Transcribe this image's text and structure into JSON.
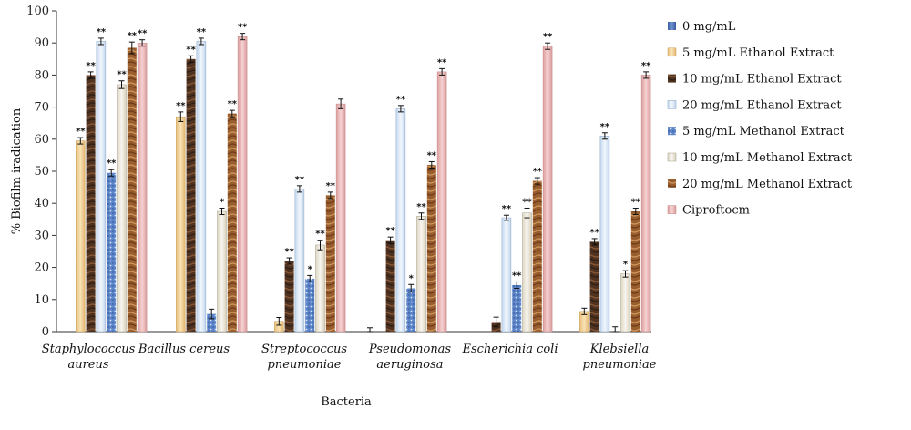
{
  "chart_data": {
    "type": "bar",
    "xlabel": "Bacteria",
    "ylabel": "% Biofilm iradication",
    "ylim": [
      0,
      100
    ],
    "yticks": [
      "0",
      "10",
      "20",
      "30",
      "40",
      "50",
      "60",
      "70",
      "80",
      "90",
      "100"
    ],
    "categories": [
      [
        "Staphylococcus",
        "aureus"
      ],
      [
        "Bacillus cereus"
      ],
      [
        "Streptococcus",
        "pneumoniae"
      ],
      [
        "Pseudomonas",
        "aeruginosa"
      ],
      [
        "Escherichia coli"
      ],
      [
        "Klebsiella",
        "pneumoniae"
      ]
    ],
    "legend_position": "right",
    "series": [
      {
        "name": "0 mg/mL",
        "color": "#4a6fb5",
        "pattern": "solid-blue",
        "values": [
          0,
          0,
          0,
          0,
          0,
          0
        ],
        "errors": [
          0,
          0,
          0,
          1.2,
          0,
          0
        ],
        "sig": [
          "",
          "",
          "",
          "",
          "",
          ""
        ]
      },
      {
        "name": "5 mg/mL Ethanol Extract",
        "color": "#f2d39a",
        "pattern": "peach",
        "values": [
          59.5,
          67,
          3.2,
          0,
          0,
          6.3
        ],
        "errors": [
          1,
          1.5,
          1.2,
          0,
          0,
          1
        ],
        "sig": [
          "**",
          "**",
          "",
          "",
          "",
          ""
        ]
      },
      {
        "name": "10 mg/mL Ethanol Extract",
        "color": "#5c3b26",
        "pattern": "dark-wood",
        "values": [
          80,
          85,
          22,
          28.5,
          3,
          28
        ],
        "errors": [
          1,
          1,
          1,
          1,
          1.5,
          1
        ],
        "sig": [
          "**",
          "**",
          "**",
          "**",
          "",
          "**"
        ]
      },
      {
        "name": "20 mg/mL Ethanol Extract",
        "color": "#dbe8f5",
        "pattern": "light-blue",
        "values": [
          90.5,
          90.5,
          44.5,
          69.5,
          35.5,
          61
        ],
        "errors": [
          1,
          1,
          1,
          1,
          0.8,
          1
        ],
        "sig": [
          "**",
          "**",
          "**",
          "**",
          "**",
          "**"
        ]
      },
      {
        "name": "5 mg/mL Methanol Extract",
        "color": "#5b84c9",
        "pattern": "blue-dots",
        "values": [
          49.5,
          5.5,
          16.5,
          13.5,
          14.5,
          0
        ],
        "errors": [
          1,
          1.5,
          1,
          1.2,
          1,
          1.5
        ],
        "sig": [
          "**",
          "",
          "*",
          "*",
          "**",
          ""
        ]
      },
      {
        "name": "10 mg/mL Methanol Extract",
        "color": "#ece8de",
        "pattern": "cream",
        "values": [
          77,
          37.5,
          27,
          36,
          37,
          18
        ],
        "errors": [
          1.2,
          1,
          1.5,
          1,
          1.5,
          1
        ],
        "sig": [
          "**",
          "*",
          "**",
          "**",
          "**",
          "*"
        ]
      },
      {
        "name": "20 mg/mL Methanol Extract",
        "color": "#9c6232",
        "pattern": "brown-wood",
        "values": [
          88.5,
          68,
          42.5,
          52,
          47,
          37.5
        ],
        "errors": [
          1.8,
          1,
          1,
          1,
          1,
          1
        ],
        "sig": [
          "**",
          "**",
          "**",
          "**",
          "**",
          "**"
        ]
      },
      {
        "name": "Ciproftocm",
        "color": "#e9b7b7",
        "pattern": "pink",
        "values": [
          90,
          92,
          71,
          81,
          89,
          80
        ],
        "errors": [
          1,
          1,
          1.5,
          1,
          1,
          1
        ],
        "sig": [
          "**",
          "**",
          "",
          "**",
          "**",
          "**"
        ]
      }
    ]
  }
}
